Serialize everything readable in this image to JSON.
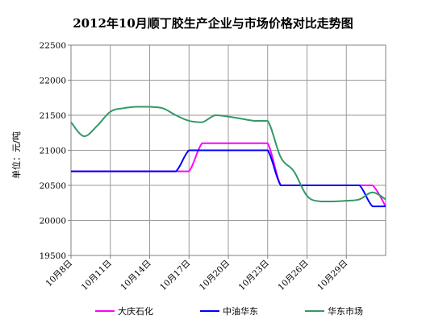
{
  "chart_data": {
    "type": "line",
    "title": "2012年10月顺丁胶生产企业与市场价格对比走势图",
    "ylabel": "单位：元/吨",
    "xlabel": "",
    "ylim": [
      19500,
      22500
    ],
    "ytick_step": 500,
    "yticks": [
      "19500",
      "20000",
      "20500",
      "21000",
      "21500",
      "22000",
      "22500"
    ],
    "x_start": "2012-10-08",
    "x_end": "2012-11-01",
    "xticks": [
      {
        "date": "2012-10-08",
        "label": "10月8日"
      },
      {
        "date": "2012-10-11",
        "label": "10月11日"
      },
      {
        "date": "2012-10-14",
        "label": "10月14日"
      },
      {
        "date": "2012-10-17",
        "label": "10月17日"
      },
      {
        "date": "2012-10-20",
        "label": "10月20日"
      },
      {
        "date": "2012-10-23",
        "label": "10月23日"
      },
      {
        "date": "2012-10-26",
        "label": "10月26日"
      },
      {
        "date": "2012-10-29",
        "label": "10月29日"
      }
    ],
    "grid": true,
    "legend_position": "bottom",
    "series": [
      {
        "name": "大庆石化",
        "color": "#ff00ff",
        "points": [
          [
            "2012-10-08",
            20700
          ],
          [
            "2012-10-09",
            20700
          ],
          [
            "2012-10-10",
            20700
          ],
          [
            "2012-10-11",
            20700
          ],
          [
            "2012-10-12",
            20700
          ],
          [
            "2012-10-13",
            20700
          ],
          [
            "2012-10-14",
            20700
          ],
          [
            "2012-10-15",
            20700
          ],
          [
            "2012-10-16",
            20700
          ],
          [
            "2012-10-17",
            20700
          ],
          [
            "2012-10-18",
            21100
          ],
          [
            "2012-10-19",
            21100
          ],
          [
            "2012-10-20",
            21100
          ],
          [
            "2012-10-21",
            21100
          ],
          [
            "2012-10-22",
            21100
          ],
          [
            "2012-10-23",
            21100
          ],
          [
            "2012-10-24",
            20500
          ],
          [
            "2012-10-25",
            20500
          ],
          [
            "2012-10-26",
            20500
          ],
          [
            "2012-10-27",
            20500
          ],
          [
            "2012-10-28",
            20500
          ],
          [
            "2012-10-29",
            20500
          ],
          [
            "2012-10-30",
            20500
          ],
          [
            "2012-10-31",
            20500
          ],
          [
            "2012-11-01",
            20200
          ]
        ]
      },
      {
        "name": "中油华东",
        "color": "#0000ff",
        "points": [
          [
            "2012-10-08",
            20700
          ],
          [
            "2012-10-09",
            20700
          ],
          [
            "2012-10-10",
            20700
          ],
          [
            "2012-10-11",
            20700
          ],
          [
            "2012-10-12",
            20700
          ],
          [
            "2012-10-13",
            20700
          ],
          [
            "2012-10-14",
            20700
          ],
          [
            "2012-10-15",
            20700
          ],
          [
            "2012-10-16",
            20700
          ],
          [
            "2012-10-17",
            21000
          ],
          [
            "2012-10-18",
            21000
          ],
          [
            "2012-10-19",
            21000
          ],
          [
            "2012-10-20",
            21000
          ],
          [
            "2012-10-21",
            21000
          ],
          [
            "2012-10-22",
            21000
          ],
          [
            "2012-10-23",
            21000
          ],
          [
            "2012-10-24",
            20500
          ],
          [
            "2012-10-25",
            20500
          ],
          [
            "2012-10-26",
            20500
          ],
          [
            "2012-10-27",
            20500
          ],
          [
            "2012-10-28",
            20500
          ],
          [
            "2012-10-29",
            20500
          ],
          [
            "2012-10-30",
            20500
          ],
          [
            "2012-10-31",
            20200
          ],
          [
            "2012-11-01",
            20200
          ]
        ]
      },
      {
        "name": "华东市场",
        "color": "#339966",
        "points": [
          [
            "2012-10-08",
            21400
          ],
          [
            "2012-10-09",
            21200
          ],
          [
            "2012-10-10",
            21350
          ],
          [
            "2012-10-11",
            21550
          ],
          [
            "2012-10-12",
            21600
          ],
          [
            "2012-10-13",
            21620
          ],
          [
            "2012-10-14",
            21620
          ],
          [
            "2012-10-15",
            21600
          ],
          [
            "2012-10-16",
            21500
          ],
          [
            "2012-10-17",
            21420
          ],
          [
            "2012-10-18",
            21400
          ],
          [
            "2012-10-19",
            21500
          ],
          [
            "2012-10-20",
            21480
          ],
          [
            "2012-10-21",
            21450
          ],
          [
            "2012-10-22",
            21420
          ],
          [
            "2012-10-23",
            21420
          ],
          [
            "2012-10-24",
            20900
          ],
          [
            "2012-10-25",
            20700
          ],
          [
            "2012-10-26",
            20350
          ],
          [
            "2012-10-27",
            20270
          ],
          [
            "2012-10-28",
            20270
          ],
          [
            "2012-10-29",
            20280
          ],
          [
            "2012-10-30",
            20300
          ],
          [
            "2012-10-31",
            20400
          ],
          [
            "2012-11-01",
            20300
          ]
        ]
      }
    ]
  }
}
